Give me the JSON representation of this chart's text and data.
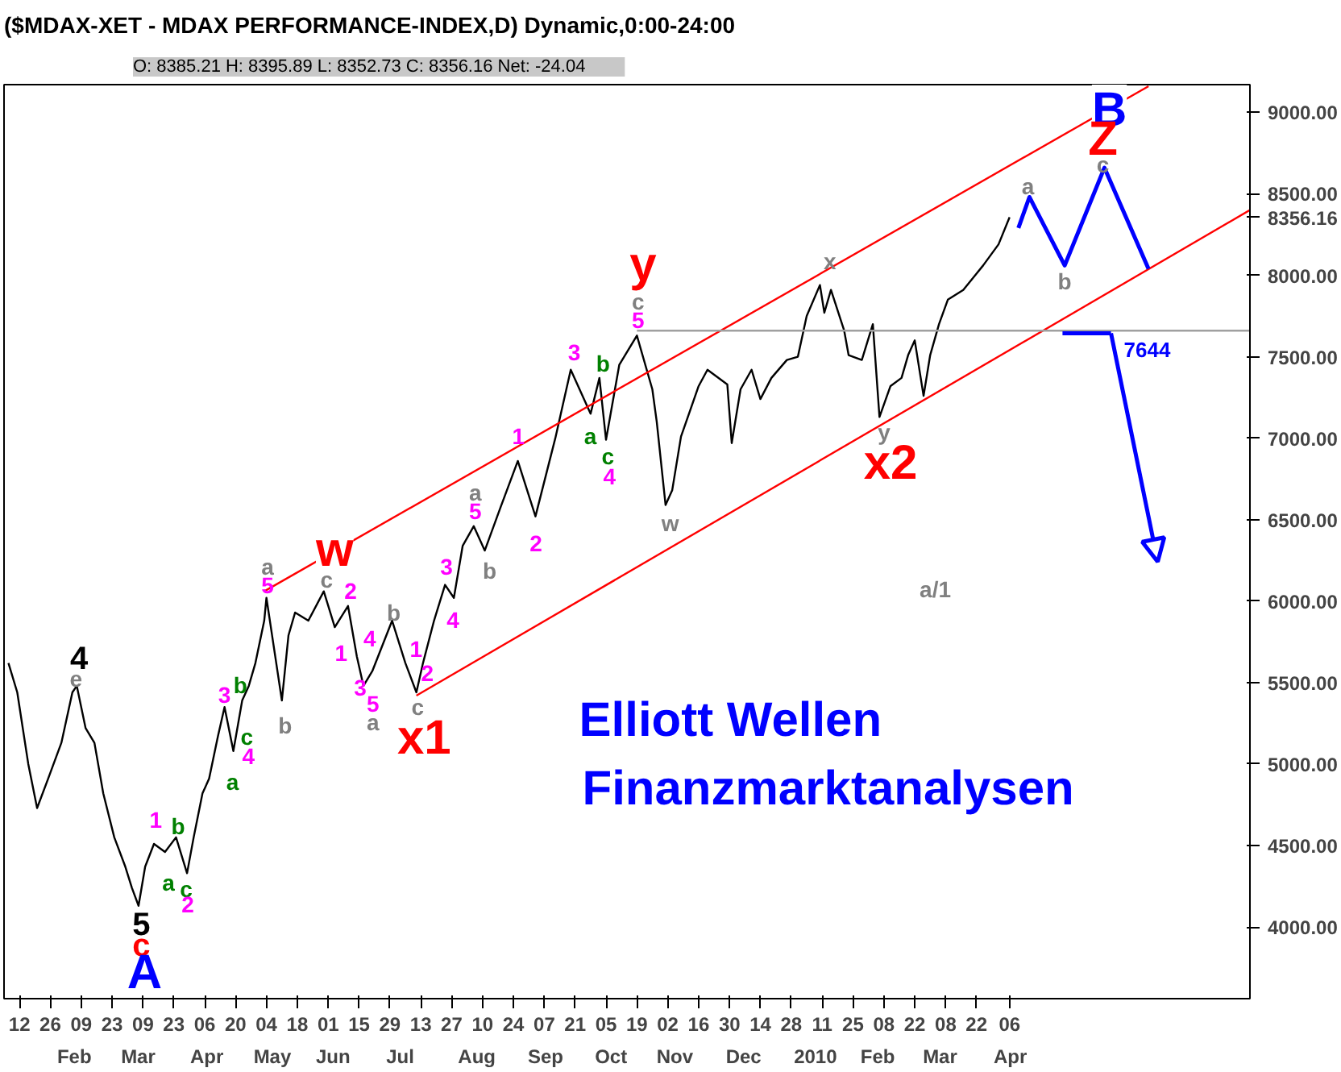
{
  "chart_data": {
    "type": "line",
    "title": "($MDAX-XET - MDAX PERFORMANCE-INDEX,D) Dynamic,0:00-24:00",
    "subtitle": "O: 8385.21   H: 8395.89   L: 8352.73   C: 8356.16   Net: -24.04",
    "xlim": [
      "2009-01-05",
      "2010-07-24"
    ],
    "ylim": [
      3560,
      9170
    ],
    "xticks": [
      {
        "value": "2009-01-12",
        "label": "12"
      },
      {
        "value": "2009-01-26",
        "label": "26"
      },
      {
        "value": "2009-02-09",
        "label": "09"
      },
      {
        "value": "2009-02-23",
        "label": "23"
      },
      {
        "value": "2009-03-09",
        "label": "09"
      },
      {
        "value": "2009-03-23",
        "label": "23"
      },
      {
        "value": "2009-04-06",
        "label": "06"
      },
      {
        "value": "2009-04-20",
        "label": "20"
      },
      {
        "value": "2009-05-04",
        "label": "04"
      },
      {
        "value": "2009-05-18",
        "label": "18"
      },
      {
        "value": "2009-06-01",
        "label": "01"
      },
      {
        "value": "2009-06-15",
        "label": "15"
      },
      {
        "value": "2009-06-29",
        "label": "29"
      },
      {
        "value": "2009-07-13",
        "label": "13"
      },
      {
        "value": "2009-07-27",
        "label": "27"
      },
      {
        "value": "2009-08-10",
        "label": "10"
      },
      {
        "value": "2009-08-24",
        "label": "24"
      },
      {
        "value": "2009-09-07",
        "label": "07"
      },
      {
        "value": "2009-09-21",
        "label": "21"
      },
      {
        "value": "2009-10-05",
        "label": "05"
      },
      {
        "value": "2009-10-19",
        "label": "19"
      },
      {
        "value": "2009-11-02",
        "label": "02"
      },
      {
        "value": "2009-11-16",
        "label": "16"
      },
      {
        "value": "2009-11-30",
        "label": "30"
      },
      {
        "value": "2009-12-14",
        "label": "14"
      },
      {
        "value": "2009-12-28",
        "label": "28"
      },
      {
        "value": "2010-01-11",
        "label": "11"
      },
      {
        "value": "2010-01-25",
        "label": "25"
      },
      {
        "value": "2010-02-08",
        "label": "08"
      },
      {
        "value": "2010-02-22",
        "label": "22"
      },
      {
        "value": "2010-03-08",
        "label": "08"
      },
      {
        "value": "2010-03-22",
        "label": "22"
      },
      {
        "value": "2010-04-06",
        "label": "06"
      }
    ],
    "yticks": [
      {
        "value": 4000,
        "label": "4000.00"
      },
      {
        "value": 4500,
        "label": "4500.00"
      },
      {
        "value": 5000,
        "label": "5000.00"
      },
      {
        "value": 5500,
        "label": "5500.00"
      },
      {
        "value": 6000,
        "label": "6000.00"
      },
      {
        "value": 6500,
        "label": "6500.00"
      },
      {
        "value": 7000,
        "label": "7000.00"
      },
      {
        "value": 7500,
        "label": "7500.00"
      },
      {
        "value": 8000,
        "label": "8000.00"
      },
      {
        "value": 8356.16,
        "label": "8356.16"
      },
      {
        "value": 8500,
        "label": "8500.00"
      },
      {
        "value": 9000,
        "label": "9000.00"
      }
    ],
    "grid": false,
    "series": [
      {
        "color": "#000000",
        "x": [
          "2009-01-07",
          "2009-01-11",
          "2009-01-16",
          "2009-01-20",
          "2009-01-25",
          "2009-01-31",
          "2009-02-05",
          "2009-02-07",
          "2009-02-11",
          "2009-02-15",
          "2009-02-19",
          "2009-02-24",
          "2009-03-01",
          "2009-03-04",
          "2009-03-07",
          "2009-03-10",
          "2009-03-14",
          "2009-03-19",
          "2009-03-24",
          "2009-03-29",
          "2009-04-01",
          "2009-04-05",
          "2009-04-08",
          "2009-04-12",
          "2009-04-15",
          "2009-04-19",
          "2009-04-23",
          "2009-04-26",
          "2009-04-29",
          "2009-05-03",
          "2009-05-04",
          "2009-05-11",
          "2009-05-14",
          "2009-05-17",
          "2009-05-23",
          "2009-05-30",
          "2009-06-04",
          "2009-06-10",
          "2009-06-14",
          "2009-06-17",
          "2009-06-21",
          "2009-06-30",
          "2009-07-06",
          "2009-07-11",
          "2009-07-14",
          "2009-07-19",
          "2009-07-24",
          "2009-07-28",
          "2009-08-01",
          "2009-08-06",
          "2009-08-11",
          "2009-08-18",
          "2009-08-26",
          "2009-09-03",
          "2009-09-12",
          "2009-09-19",
          "2009-09-28",
          "2009-10-02",
          "2009-10-05",
          "2009-10-11",
          "2009-10-19",
          "2009-10-26",
          "2009-10-28",
          "2009-11-01",
          "2009-11-04",
          "2009-11-08",
          "2009-11-16",
          "2009-11-20",
          "2009-11-29",
          "2009-12-01",
          "2009-12-05",
          "2009-12-10",
          "2009-12-14",
          "2009-12-19",
          "2009-12-26",
          "2009-12-31",
          "2010-01-04",
          "2010-01-10",
          "2010-01-12",
          "2010-01-15",
          "2010-01-21",
          "2010-01-23",
          "2010-01-29",
          "2010-02-03",
          "2010-02-06",
          "2010-02-11",
          "2010-02-16",
          "2010-02-19",
          "2010-02-22",
          "2010-02-26",
          "2010-03-01",
          "2010-03-05",
          "2010-03-09",
          "2010-03-16",
          "2010-03-22",
          "2010-03-25",
          "2010-04-01",
          "2010-04-06"
        ],
        "values": [
          5620,
          5440,
          5000,
          4730,
          4910,
          5130,
          5440,
          5480,
          5220,
          5130,
          4820,
          4550,
          4370,
          4240,
          4130,
          4370,
          4510,
          4460,
          4550,
          4330,
          4550,
          4820,
          4910,
          5170,
          5350,
          5080,
          5390,
          5480,
          5620,
          5880,
          6020,
          5390,
          5790,
          5930,
          5880,
          6060,
          5840,
          5970,
          5660,
          5480,
          5570,
          5880,
          5620,
          5440,
          5620,
          5880,
          6100,
          6020,
          6340,
          6460,
          6310,
          6570,
          6860,
          6520,
          7000,
          7420,
          7150,
          7370,
          6990,
          7450,
          7630,
          7300,
          7100,
          6590,
          6680,
          7010,
          7320,
          7420,
          7330,
          6970,
          7300,
          7420,
          7240,
          7370,
          7480,
          7500,
          7750,
          7940,
          7770,
          7910,
          7660,
          7510,
          7480,
          7700,
          7130,
          7320,
          7370,
          7510,
          7600,
          7260,
          7510,
          7700,
          7850,
          7910,
          8010,
          8060,
          8190,
          8356.16
        ]
      },
      {
        "color": "#ff0000",
        "x": [
          "2009-05-03",
          "2010-06-08"
        ],
        "values": [
          6060,
          9160
        ]
      },
      {
        "color": "#ff0000",
        "x": [
          "2009-07-11",
          "2010-07-24"
        ],
        "values": [
          5420,
          8400
        ]
      },
      {
        "color": "#a0a0a0",
        "x": [
          "2009-10-19",
          "2010-07-24"
        ],
        "values": [
          7660,
          7660
        ]
      },
      {
        "color": "#0000ff",
        "x": [
          "2010-04-10",
          "2010-04-15",
          "2010-05-01",
          "2010-05-19",
          "2010-06-08"
        ],
        "values": [
          8290,
          8480,
          8060,
          8660,
          8040
        ]
      },
      {
        "color": "#0000ff",
        "x": [
          "2010-04-30",
          "2010-05-22"
        ],
        "values": [
          7644,
          7644
        ],
        "value_labels": [
          null,
          "7644"
        ]
      }
    ],
    "annotations": [
      "4",
      "e",
      "1",
      "b",
      "a",
      "c",
      "2",
      "5",
      "c",
      "A",
      "3",
      "b",
      "c",
      "4",
      "a",
      "5",
      "a",
      "w",
      "b",
      "c",
      "2",
      "1",
      "4",
      "3",
      "5",
      "a",
      "b",
      "1",
      "2",
      "c",
      "x1",
      "3",
      "4",
      "5",
      "a",
      "b",
      "1",
      "2",
      "3",
      "b",
      "a",
      "c",
      "4",
      "5",
      "c",
      "y",
      "w",
      "x",
      "y",
      "x2",
      "a/1",
      "B",
      "Z",
      "c",
      "a",
      "b",
      "Elliott Wellen",
      "Finanzmarktanalysen",
      "Feb",
      "Mar",
      "Apr",
      "May",
      "Jun",
      "Jul",
      "Aug",
      "Sep",
      "Oct",
      "Nov",
      "Dec",
      "2010",
      "Feb",
      "Mar",
      "Apr"
    ]
  }
}
